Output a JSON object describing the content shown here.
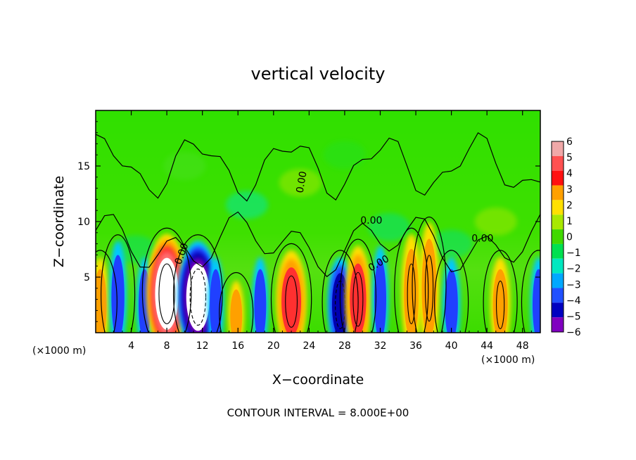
{
  "chart_data": {
    "type": "heatmap",
    "title": "vertical velocity",
    "xlabel": "X−coordinate",
    "ylabel": "Z−coordinate",
    "x_unit_left": "(×1000 m)",
    "x_unit_right": "(×1000 m)",
    "footer": "CONTOUR INTERVAL = 8.000E+00",
    "xlim": [
      0,
      50
    ],
    "ylim": [
      0,
      20
    ],
    "x_ticks": [
      4,
      8,
      12,
      16,
      20,
      24,
      28,
      32,
      36,
      40,
      44,
      48
    ],
    "x_tick_labels": [
      "4",
      "8",
      "12",
      "16",
      "20",
      "24",
      "28",
      "32",
      "36",
      "40",
      "44",
      "48"
    ],
    "y_ticks": [
      5,
      10,
      15
    ],
    "y_tick_labels": [
      "5",
      "10",
      "15"
    ],
    "colorbar": {
      "levels": [
        6,
        5,
        4,
        3,
        2,
        1,
        0,
        -1,
        -2,
        -3,
        -4,
        -5,
        -6
      ],
      "labels": [
        "6",
        "5",
        "4",
        "3",
        "2",
        "1",
        "0",
        "−1",
        "−2",
        "−3",
        "−4",
        "−5",
        "−6"
      ],
      "colors": [
        "#f0a8a8",
        "#ff5050",
        "#ff1010",
        "#ffa000",
        "#ffe000",
        "#a8e800",
        "#40d800",
        "#00e050",
        "#00e8c0",
        "#00a8ff",
        "#2050ff",
        "#0000c0",
        "#8000c0"
      ]
    },
    "contour_label": "0.00",
    "contour_labels": [
      "0.00",
      "0.00",
      "0.00",
      "0.00",
      "0.00"
    ],
    "cells": [
      {
        "x": 0.5,
        "z": 2.5,
        "w": 7
      },
      {
        "x": 2.5,
        "z": 3.2,
        "w": -7
      },
      {
        "x": 5.5,
        "z": 2.5,
        "w": -3
      },
      {
        "x": 8.0,
        "z": 3.5,
        "w": 16
      },
      {
        "x": 11.5,
        "z": 3.2,
        "w": -16
      },
      {
        "x": 13.5,
        "z": 2.5,
        "w": -3
      },
      {
        "x": 15.8,
        "z": 1.5,
        "w": 6
      },
      {
        "x": 18.5,
        "z": 2.5,
        "w": -4
      },
      {
        "x": 22.0,
        "z": 2.8,
        "w": 12
      },
      {
        "x": 27.5,
        "z": 2.5,
        "w": -10
      },
      {
        "x": 29.5,
        "z": 3.0,
        "w": 10
      },
      {
        "x": 32.0,
        "z": 3.0,
        "w": -4
      },
      {
        "x": 35.5,
        "z": 3.5,
        "w": 8
      },
      {
        "x": 37.5,
        "z": 4.0,
        "w": 8
      },
      {
        "x": 40.0,
        "z": 2.5,
        "w": -7
      },
      {
        "x": 45.5,
        "z": 2.5,
        "w": 8
      },
      {
        "x": 49.8,
        "z": 2.5,
        "w": -6
      }
    ]
  }
}
